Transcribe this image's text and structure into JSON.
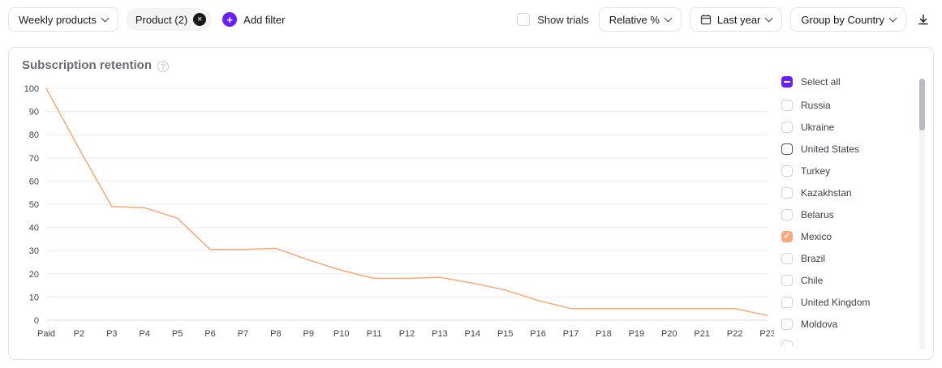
{
  "toolbar": {
    "products_dropdown": "Weekly products",
    "filter_chip": "Product (2)",
    "add_filter": "Add filter",
    "show_trials": "Show trials",
    "relative_dropdown": "Relative %",
    "date_range": "Last year",
    "group_by": "Group by Country"
  },
  "panel": {
    "title": "Subscription retention"
  },
  "legend": {
    "select_all": "Select all",
    "items": [
      {
        "label": "Russia",
        "checked": false
      },
      {
        "label": "Ukraine",
        "checked": false
      },
      {
        "label": "United States",
        "checked": false,
        "focused": true
      },
      {
        "label": "Turkey",
        "checked": false
      },
      {
        "label": "Kazakhstan",
        "checked": false
      },
      {
        "label": "Belarus",
        "checked": false
      },
      {
        "label": "Mexico",
        "checked": true
      },
      {
        "label": "Brazil",
        "checked": false
      },
      {
        "label": "Chile",
        "checked": false
      },
      {
        "label": "United Kingdom",
        "checked": false
      },
      {
        "label": "Moldova",
        "checked": false
      }
    ]
  },
  "icons": {
    "plus": "+",
    "close": "×",
    "help": "?",
    "checkmark": "✓",
    "chevron_down": "css-shape",
    "calendar": "svg-shape",
    "download": "svg-shape"
  },
  "colors": {
    "accent_purple": "#6720FF",
    "line_orange": "#F5A97C",
    "grid": "#ececef",
    "axis": "#d9d9de"
  },
  "chart_data": {
    "type": "line",
    "title": "Subscription retention",
    "xlabel": "",
    "ylabel": "",
    "ylim": [
      0,
      100
    ],
    "ytick_step": 10,
    "grid": true,
    "legend_position": "right",
    "categories": [
      "Paid",
      "P2",
      "P3",
      "P4",
      "P5",
      "P6",
      "P7",
      "P8",
      "P9",
      "P10",
      "P11",
      "P12",
      "P13",
      "P14",
      "P15",
      "P16",
      "P17",
      "P18",
      "P19",
      "P20",
      "P21",
      "P22",
      "P23"
    ],
    "series": [
      {
        "name": "Mexico",
        "color": "#F5A97C",
        "values": [
          100,
          74,
          49,
          48.5,
          44,
          30.5,
          30.5,
          31,
          26,
          21.5,
          18,
          18,
          18.5,
          16,
          13,
          8.5,
          5,
          5,
          5,
          5,
          5,
          5,
          2
        ]
      }
    ]
  }
}
